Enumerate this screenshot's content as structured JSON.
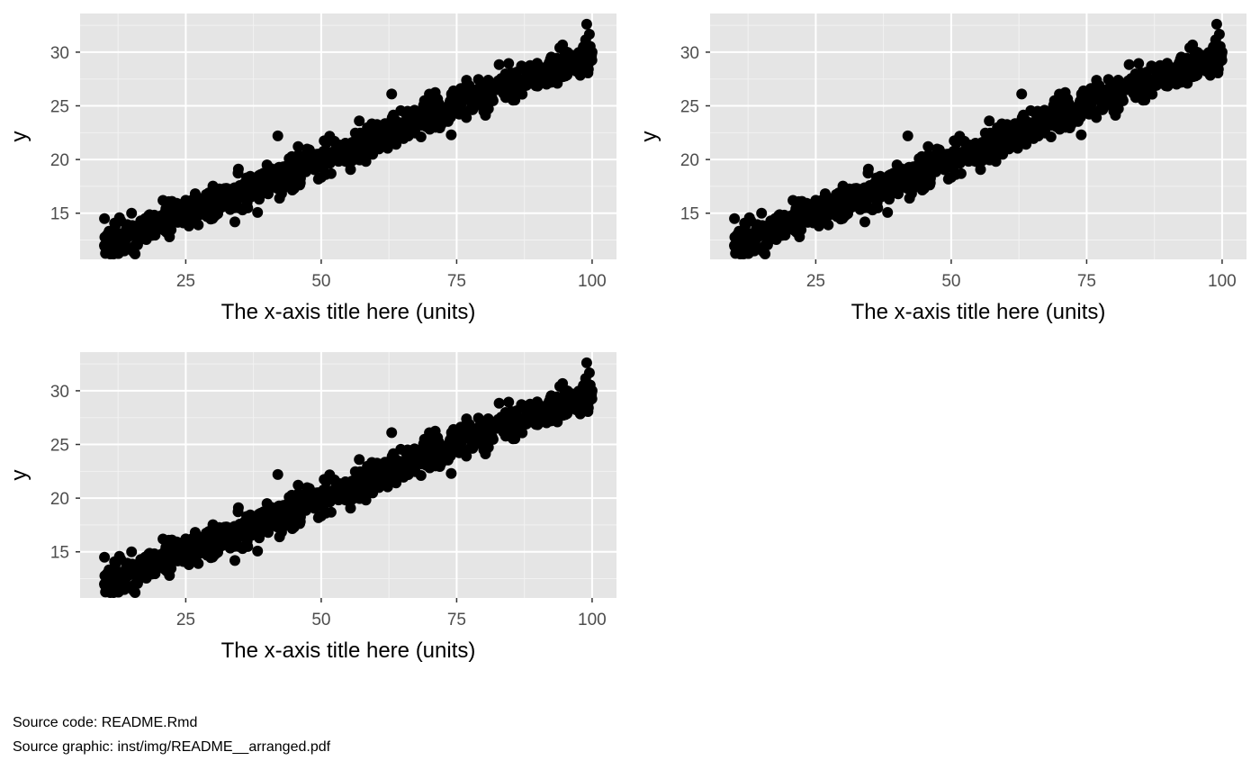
{
  "colors": {
    "panel_background": "#e5e5e5",
    "grid_major": "#ffffff",
    "grid_minor": "#f2f2f2",
    "point": "#000000",
    "tick_label": "#4d4d4d",
    "tick_mark": "#333333"
  },
  "chart_data": [
    {
      "type": "scatter",
      "xlabel": "The x-axis title here (units)",
      "ylabel": "y",
      "xlim": [
        5.5,
        104.5
      ],
      "ylim": [
        10.7,
        33.6
      ],
      "x_ticks": [
        25,
        50,
        75,
        100
      ],
      "y_ticks": [
        15,
        20,
        25,
        30
      ],
      "grid": true,
      "approx_relation": "y ≈ 10 + 0.2·x (noise sd ≈ 0.8)",
      "point_count": 1000,
      "points": [
        [
          10,
          12.0
        ],
        [
          10,
          14.5
        ],
        [
          11,
          12.5
        ],
        [
          12,
          13.8
        ],
        [
          13,
          14.3
        ],
        [
          15,
          15.0
        ],
        [
          17,
          12.6
        ],
        [
          20,
          14.0
        ],
        [
          22,
          12.8
        ],
        [
          25,
          16.2
        ],
        [
          30,
          16.5
        ],
        [
          35,
          16.8
        ],
        [
          40,
          19.5
        ],
        [
          42,
          22.2
        ],
        [
          45,
          17.3
        ],
        [
          50,
          20.0
        ],
        [
          55,
          21.0
        ],
        [
          60,
          22.0
        ],
        [
          63,
          26.1
        ],
        [
          65,
          23.0
        ],
        [
          70,
          24.0
        ],
        [
          74,
          22.3
        ],
        [
          75,
          25.0
        ],
        [
          80,
          24.5
        ],
        [
          85,
          27.0
        ],
        [
          90,
          28.0
        ],
        [
          95,
          29.0
        ],
        [
          100,
          30.0
        ],
        [
          99,
          32.6
        ]
      ]
    },
    {
      "type": "scatter",
      "xlabel": "The x-axis title here (units)",
      "ylabel": "y",
      "xlim": [
        5.5,
        104.5
      ],
      "ylim": [
        10.7,
        33.6
      ],
      "x_ticks": [
        25,
        50,
        75,
        100
      ],
      "y_ticks": [
        15,
        20,
        25,
        30
      ],
      "grid": true,
      "approx_relation": "y ≈ 10 + 0.2·x (noise sd ≈ 0.8)",
      "point_count": 1000,
      "points": [
        [
          10,
          12.0
        ],
        [
          10,
          14.5
        ],
        [
          11,
          12.5
        ],
        [
          12,
          13.8
        ],
        [
          13,
          14.3
        ],
        [
          15,
          15.0
        ],
        [
          17,
          12.6
        ],
        [
          20,
          14.0
        ],
        [
          22,
          12.8
        ],
        [
          25,
          16.2
        ],
        [
          30,
          16.5
        ],
        [
          35,
          16.8
        ],
        [
          40,
          19.5
        ],
        [
          42,
          22.2
        ],
        [
          45,
          17.3
        ],
        [
          50,
          20.0
        ],
        [
          55,
          21.0
        ],
        [
          60,
          22.0
        ],
        [
          63,
          26.1
        ],
        [
          65,
          23.0
        ],
        [
          70,
          24.0
        ],
        [
          74,
          22.3
        ],
        [
          75,
          25.0
        ],
        [
          80,
          24.5
        ],
        [
          85,
          27.0
        ],
        [
          90,
          28.0
        ],
        [
          95,
          29.0
        ],
        [
          100,
          30.0
        ],
        [
          99,
          32.6
        ]
      ]
    },
    {
      "type": "scatter",
      "xlabel": "The x-axis title here (units)",
      "ylabel": "y",
      "xlim": [
        5.5,
        104.5
      ],
      "ylim": [
        10.7,
        33.6
      ],
      "x_ticks": [
        25,
        50,
        75,
        100
      ],
      "y_ticks": [
        15,
        20,
        25,
        30
      ],
      "grid": true,
      "approx_relation": "y ≈ 10 + 0.2·x (noise sd ≈ 0.8)",
      "point_count": 1000,
      "points": [
        [
          10,
          12.0
        ],
        [
          10,
          14.5
        ],
        [
          11,
          12.5
        ],
        [
          12,
          13.8
        ],
        [
          13,
          14.3
        ],
        [
          15,
          15.0
        ],
        [
          17,
          12.6
        ],
        [
          20,
          14.0
        ],
        [
          22,
          12.8
        ],
        [
          25,
          16.2
        ],
        [
          30,
          16.5
        ],
        [
          35,
          16.8
        ],
        [
          40,
          19.5
        ],
        [
          42,
          22.2
        ],
        [
          45,
          17.3
        ],
        [
          50,
          20.0
        ],
        [
          55,
          21.0
        ],
        [
          60,
          22.0
        ],
        [
          63,
          26.1
        ],
        [
          65,
          23.0
        ],
        [
          70,
          24.0
        ],
        [
          74,
          22.3
        ],
        [
          75,
          25.0
        ],
        [
          80,
          24.5
        ],
        [
          85,
          27.0
        ],
        [
          90,
          28.0
        ],
        [
          95,
          29.0
        ],
        [
          100,
          30.0
        ],
        [
          99,
          32.6
        ]
      ]
    }
  ],
  "captions": {
    "source_code": "Source code: README.Rmd",
    "source_graphic": "Source graphic: inst/img/README__arranged.pdf"
  }
}
